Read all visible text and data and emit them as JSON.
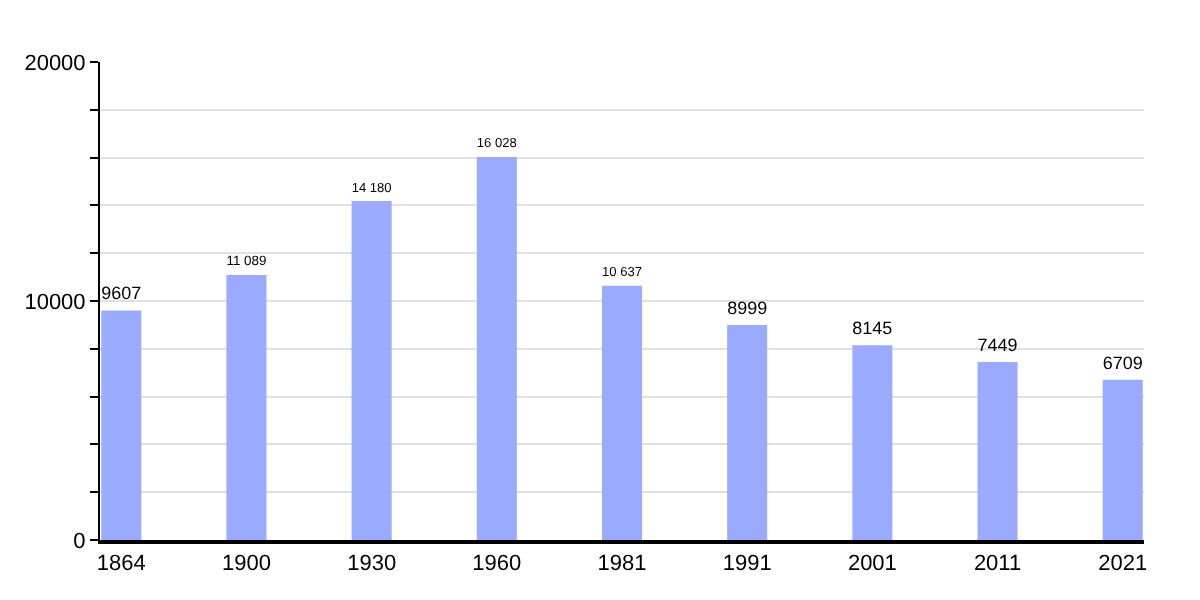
{
  "chart_data": {
    "type": "bar",
    "categories": [
      "1864",
      "1900",
      "1930",
      "1960",
      "1981",
      "1991",
      "2001",
      "2011",
      "2021"
    ],
    "values": [
      9607,
      11089,
      14180,
      16028,
      10637,
      8999,
      8145,
      7449,
      6709
    ],
    "value_labels": [
      "9607",
      "11 089",
      "14 180",
      "16 028",
      "10 637",
      "8999",
      "8145",
      "7449",
      "6709"
    ],
    "color": "#99aaff",
    "ylim": [
      0,
      20000
    ],
    "yticks": [
      0,
      {
        "value": 2000,
        "label": null
      },
      {
        "value": 4000,
        "label": null
      },
      {
        "value": 6000,
        "label": null
      },
      {
        "value": 8000,
        "label": null
      },
      10000,
      {
        "value": 12000,
        "label": null
      },
      {
        "value": 14000,
        "label": null
      },
      {
        "value": 16000,
        "label": null
      },
      {
        "value": 18000,
        "label": null
      },
      20000
    ],
    "grid": "y"
  }
}
